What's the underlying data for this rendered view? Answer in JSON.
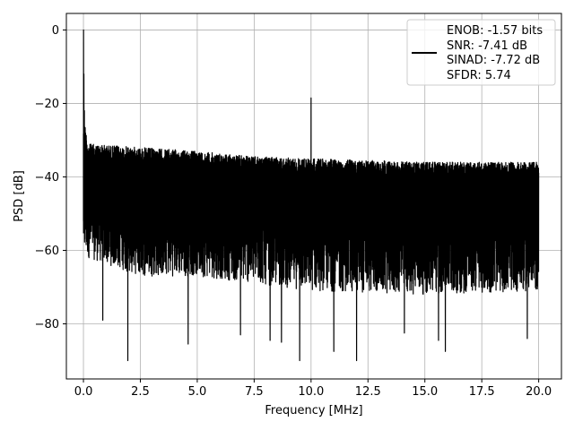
{
  "chart_data": {
    "type": "line",
    "title": "",
    "xlabel": "Frequency [MHz]",
    "ylabel": "PSD [dB]",
    "xlim": [
      -0.75,
      21.0
    ],
    "ylim": [
      -95,
      4.5
    ],
    "xticks": [
      0.0,
      2.5,
      5.0,
      7.5,
      10.0,
      12.5,
      15.0,
      17.5,
      20.0
    ],
    "xtick_labels": [
      "0.0",
      "2.5",
      "5.0",
      "7.5",
      "10.0",
      "12.5",
      "15.0",
      "17.5",
      "20.0"
    ],
    "yticks": [
      0,
      -20,
      -40,
      -60,
      -80
    ],
    "ytick_labels": [
      "0",
      "−20",
      "−40",
      "−60",
      "−80"
    ],
    "grid": true,
    "legend_position": "top-right",
    "legend_entries": [
      "ENOB: -1.57 bits",
      "SNR: -7.41 dB",
      "SINAD: -7.72 dB",
      "SFDR: 5.74"
    ],
    "series": [
      {
        "color": "#000000",
        "peaks": [
          {
            "x": 0.0,
            "y": 0
          },
          {
            "x": 10.0,
            "y": -18.5
          }
        ],
        "noise_upper_envelope": [
          {
            "x": 0.05,
            "y": -25
          },
          {
            "x": 0.2,
            "y": -31
          },
          {
            "x": 2.5,
            "y": -32
          },
          {
            "x": 5.0,
            "y": -33
          },
          {
            "x": 7.5,
            "y": -34.5
          },
          {
            "x": 10.0,
            "y": -35
          },
          {
            "x": 12.5,
            "y": -35.5
          },
          {
            "x": 15.0,
            "y": -36
          },
          {
            "x": 17.5,
            "y": -36
          },
          {
            "x": 20.0,
            "y": -36
          }
        ],
        "noise_lower_envelope": [
          {
            "x": 0.2,
            "y": -62
          },
          {
            "x": 2.5,
            "y": -67
          },
          {
            "x": 5.0,
            "y": -67
          },
          {
            "x": 10.0,
            "y": -71
          },
          {
            "x": 15.0,
            "y": -72
          },
          {
            "x": 20.0,
            "y": -71
          }
        ],
        "minima": [
          {
            "x": 0.85,
            "y": -79
          },
          {
            "x": 1.95,
            "y": -90
          },
          {
            "x": 4.6,
            "y": -85.5
          },
          {
            "x": 6.9,
            "y": -83
          },
          {
            "x": 8.2,
            "y": -84.5
          },
          {
            "x": 8.7,
            "y": -85
          },
          {
            "x": 9.5,
            "y": -90
          },
          {
            "x": 11.0,
            "y": -87.5
          },
          {
            "x": 12.0,
            "y": -90
          },
          {
            "x": 14.1,
            "y": -82.5
          },
          {
            "x": 15.6,
            "y": -84.5
          },
          {
            "x": 15.9,
            "y": -87.5
          },
          {
            "x": 19.5,
            "y": -84
          }
        ]
      }
    ]
  }
}
